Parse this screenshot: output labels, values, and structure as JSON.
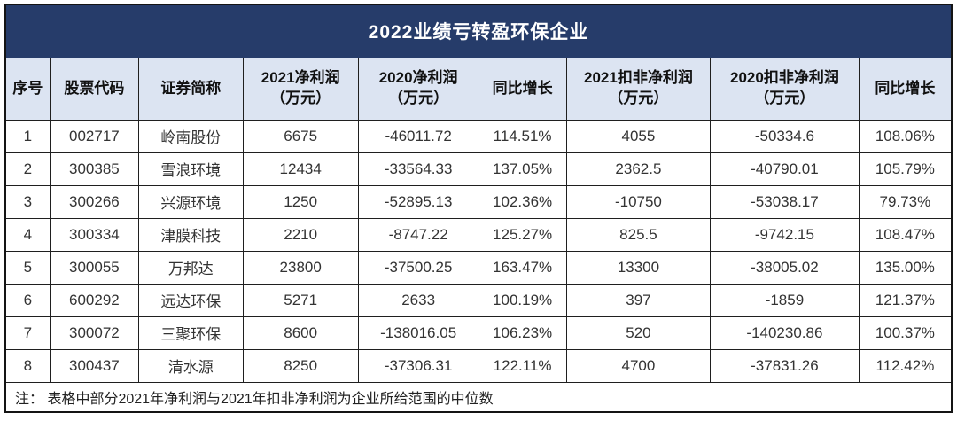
{
  "title": "2022业绩亏转盈环保企业",
  "colors": {
    "title_bg": "#263C6A",
    "title_text": "#FFFFFF",
    "header_bg": "#DCE4F2",
    "border": "#1F1F1F",
    "body_text": "#333333"
  },
  "table": {
    "columns": [
      {
        "label": "序号",
        "sub": "",
        "width_pct": 4.7
      },
      {
        "label": "股票代码",
        "sub": "",
        "width_pct": 9.4
      },
      {
        "label": "证券简称",
        "sub": "",
        "width_pct": 11.0
      },
      {
        "label": "2021净利润",
        "sub": "（万元）",
        "width_pct": 12.2
      },
      {
        "label": "2020净利润",
        "sub": "（万元）",
        "width_pct": 12.7
      },
      {
        "label": "同比增长",
        "sub": "",
        "width_pct": 9.3
      },
      {
        "label": "2021扣非净利润",
        "sub": "（万元）",
        "width_pct": 15.2
      },
      {
        "label": "2020扣非净利润",
        "sub": "（万元）",
        "width_pct": 15.7
      },
      {
        "label": "同比增长",
        "sub": "",
        "width_pct": 9.8
      }
    ],
    "rows": [
      [
        "1",
        "002717",
        "岭南股份",
        "6675",
        "-46011.72",
        "114.51%",
        "4055",
        "-50334.6",
        "108.06%"
      ],
      [
        "2",
        "300385",
        "雪浪环境",
        "12434",
        "-33564.33",
        "137.05%",
        "2362.5",
        "-40790.01",
        "105.79%"
      ],
      [
        "3",
        "300266",
        "兴源环境",
        "1250",
        "-52895.13",
        "102.36%",
        "-10750",
        "-53038.17",
        "79.73%"
      ],
      [
        "4",
        "300334",
        "津膜科技",
        "2210",
        "-8747.22",
        "125.27%",
        "825.5",
        "-9742.15",
        "108.47%"
      ],
      [
        "5",
        "300055",
        "万邦达",
        "23800",
        "-37500.25",
        "163.47%",
        "13300",
        "-38005.02",
        "135.00%"
      ],
      [
        "6",
        "600292",
        "远达环保",
        "5271",
        "2633",
        "100.19%",
        "397",
        "-1859",
        "121.37%"
      ],
      [
        "7",
        "300072",
        "三聚环保",
        "8600",
        "-138016.05",
        "106.23%",
        "520",
        "-140230.86",
        "100.37%"
      ],
      [
        "8",
        "300437",
        "清水源",
        "8250",
        "-37306.31",
        "122.11%",
        "4700",
        "-37831.26",
        "112.42%"
      ]
    ],
    "note": "注： 表格中部分2021年净利润与2021年扣非净利润为企业所给范围的中位数"
  }
}
